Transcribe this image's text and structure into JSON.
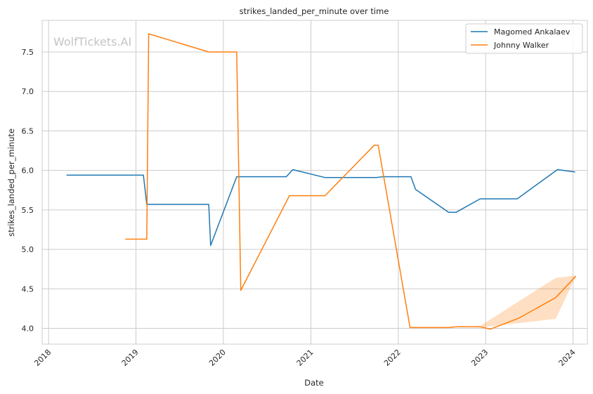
{
  "chart_data": {
    "type": "line",
    "title": "strikes_landed_per_minute over time",
    "xlabel": "Date",
    "ylabel": "strikes_landed_per_minute",
    "watermark": "WolfTickets.AI",
    "x_ticks": [
      "2018",
      "2019",
      "2020",
      "2021",
      "2022",
      "2023",
      "2024"
    ],
    "y_ticks": [
      "4.0",
      "4.5",
      "5.0",
      "5.5",
      "6.0",
      "6.5",
      "7.0",
      "7.5"
    ],
    "xlim": [
      "2017-12-05",
      "2024-03-01"
    ],
    "ylim": [
      3.8,
      7.9
    ],
    "grid": true,
    "legend_position": "top-right",
    "series": [
      {
        "name": "Magomed Ankalaev",
        "color": "#1f77b4",
        "points": [
          [
            "2018-03-17",
            5.94
          ],
          [
            "2019-02-01",
            5.94
          ],
          [
            "2019-02-15",
            5.57
          ],
          [
            "2019-11-01",
            5.57
          ],
          [
            "2019-11-09",
            5.05
          ],
          [
            "2020-02-26",
            5.92
          ],
          [
            "2020-09-20",
            5.92
          ],
          [
            "2020-10-17",
            6.01
          ],
          [
            "2021-03-01",
            5.91
          ],
          [
            "2021-10-01",
            5.91
          ],
          [
            "2021-10-31",
            5.92
          ],
          [
            "2022-02-23",
            5.92
          ],
          [
            "2022-03-14",
            5.76
          ],
          [
            "2022-07-30",
            5.47
          ],
          [
            "2022-08-31",
            5.47
          ],
          [
            "2022-12-09",
            5.64
          ],
          [
            "2023-05-13",
            5.64
          ],
          [
            "2023-10-28",
            6.01
          ],
          [
            "2024-01-10",
            5.98
          ]
        ]
      },
      {
        "name": "Johnny Walker",
        "color": "#ff7f0e",
        "points": [
          [
            "2018-11-17",
            5.13
          ],
          [
            "2019-02-15",
            5.13
          ],
          [
            "2019-02-23",
            7.73
          ],
          [
            "2019-11-01",
            7.5
          ],
          [
            "2020-02-26",
            7.5
          ],
          [
            "2020-03-14",
            4.48
          ],
          [
            "2020-10-03",
            5.68
          ],
          [
            "2021-03-01",
            5.68
          ],
          [
            "2021-09-23",
            6.32
          ],
          [
            "2021-10-09",
            6.32
          ],
          [
            "2022-02-19",
            4.01
          ],
          [
            "2022-07-30",
            4.01
          ],
          [
            "2022-08-31",
            4.02
          ],
          [
            "2022-12-09",
            4.02
          ],
          [
            "2023-01-21",
            3.99
          ],
          [
            "2023-05-20",
            4.13
          ],
          [
            "2023-10-21",
            4.39
          ],
          [
            "2024-01-13",
            4.66
          ]
        ],
        "band": [
          [
            "2022-08-31",
            4.02,
            4.02
          ],
          [
            "2022-12-09",
            4.01,
            4.03
          ],
          [
            "2023-10-21",
            4.12,
            4.64
          ],
          [
            "2024-01-13",
            4.66,
            4.67
          ]
        ]
      }
    ]
  }
}
